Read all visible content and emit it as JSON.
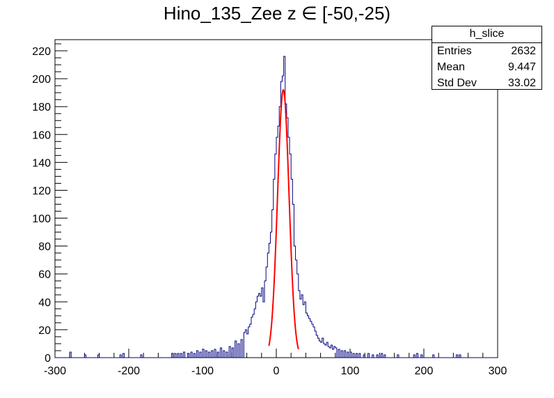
{
  "chart_data": {
    "type": "bar",
    "style": "step-histogram",
    "title": "Hino_135_Zee z  ∈ [-50,-25)",
    "xlabel": "",
    "ylabel": "",
    "xlim": [
      -300,
      300
    ],
    "ylim": [
      0,
      228
    ],
    "xticks": [
      -300,
      -200,
      -100,
      0,
      100,
      200,
      300
    ],
    "yticks": [
      0,
      20,
      40,
      60,
      80,
      100,
      120,
      140,
      160,
      180,
      200,
      220
    ],
    "grid": false,
    "bin_width": 2,
    "histogram": {
      "name": "h_slice",
      "color": "#000080",
      "points": [
        [
          -279,
          4
        ],
        [
          -259,
          2
        ],
        [
          -241,
          2
        ],
        [
          -211,
          2
        ],
        [
          -207,
          3
        ],
        [
          -183,
          2
        ],
        [
          -141,
          3
        ],
        [
          -137,
          3
        ],
        [
          -133,
          3
        ],
        [
          -129,
          3
        ],
        [
          -125,
          4
        ],
        [
          -119,
          3
        ],
        [
          -115,
          4
        ],
        [
          -111,
          3
        ],
        [
          -107,
          5
        ],
        [
          -103,
          4
        ],
        [
          -99,
          6
        ],
        [
          -95,
          5
        ],
        [
          -91,
          4
        ],
        [
          -87,
          5
        ],
        [
          -83,
          6
        ],
        [
          -79,
          4
        ],
        [
          -75,
          7
        ],
        [
          -71,
          5
        ],
        [
          -67,
          4
        ],
        [
          -63,
          8
        ],
        [
          -59,
          7
        ],
        [
          -55,
          12
        ],
        [
          -51,
          10
        ],
        [
          -47,
          13
        ],
        [
          -43,
          18
        ],
        [
          -41,
          20
        ],
        [
          -39,
          17
        ],
        [
          -37,
          22
        ],
        [
          -35,
          24
        ],
        [
          -33,
          29
        ],
        [
          -31,
          31
        ],
        [
          -29,
          35
        ],
        [
          -27,
          40
        ],
        [
          -25,
          44
        ],
        [
          -23,
          46
        ],
        [
          -21,
          44
        ],
        [
          -19,
          50
        ],
        [
          -17,
          40
        ],
        [
          -15,
          55
        ],
        [
          -13,
          65
        ],
        [
          -11,
          75
        ],
        [
          -9,
          82
        ],
        [
          -7,
          90
        ],
        [
          -5,
          106
        ],
        [
          -3,
          128
        ],
        [
          -1,
          146
        ],
        [
          1,
          158
        ],
        [
          3,
          166
        ],
        [
          5,
          180
        ],
        [
          7,
          198
        ],
        [
          9,
          202
        ],
        [
          11,
          216
        ],
        [
          13,
          182
        ],
        [
          15,
          172
        ],
        [
          17,
          158
        ],
        [
          19,
          146
        ],
        [
          21,
          128
        ],
        [
          23,
          110
        ],
        [
          25,
          80
        ],
        [
          27,
          70
        ],
        [
          29,
          60
        ],
        [
          31,
          48
        ],
        [
          33,
          42
        ],
        [
          35,
          45
        ],
        [
          37,
          38
        ],
        [
          39,
          40
        ],
        [
          41,
          32
        ],
        [
          43,
          30
        ],
        [
          45,
          28
        ],
        [
          47,
          26
        ],
        [
          49,
          24
        ],
        [
          51,
          22
        ],
        [
          53,
          19
        ],
        [
          55,
          16
        ],
        [
          57,
          14
        ],
        [
          59,
          12
        ],
        [
          61,
          11
        ],
        [
          63,
          14
        ],
        [
          65,
          10
        ],
        [
          67,
          9
        ],
        [
          69,
          11
        ],
        [
          71,
          8
        ],
        [
          73,
          7
        ],
        [
          75,
          9
        ],
        [
          77,
          6
        ],
        [
          79,
          8
        ],
        [
          81,
          7
        ],
        [
          85,
          6
        ],
        [
          89,
          5
        ],
        [
          93,
          5
        ],
        [
          97,
          4
        ],
        [
          101,
          4
        ],
        [
          105,
          3
        ],
        [
          109,
          3
        ],
        [
          113,
          3
        ],
        [
          119,
          2
        ],
        [
          125,
          3
        ],
        [
          131,
          2
        ],
        [
          137,
          2
        ],
        [
          143,
          3
        ],
        [
          147,
          2
        ],
        [
          165,
          2
        ],
        [
          187,
          2
        ],
        [
          191,
          3
        ],
        [
          197,
          2
        ],
        [
          213,
          2
        ],
        [
          245,
          2
        ],
        [
          249,
          2
        ]
      ]
    },
    "fit": {
      "type": "gaussian",
      "color": "#ff0000",
      "range": [
        -10,
        30
      ],
      "mean": 9.5,
      "sigma": 7.8,
      "amplitude": 192
    },
    "stats_box": {
      "title": "h_slice",
      "rows": [
        {
          "label": "Entries",
          "value": "2632"
        },
        {
          "label": "Mean",
          "value": "9.447"
        },
        {
          "label": "Std Dev",
          "value": "33.02"
        }
      ]
    }
  }
}
